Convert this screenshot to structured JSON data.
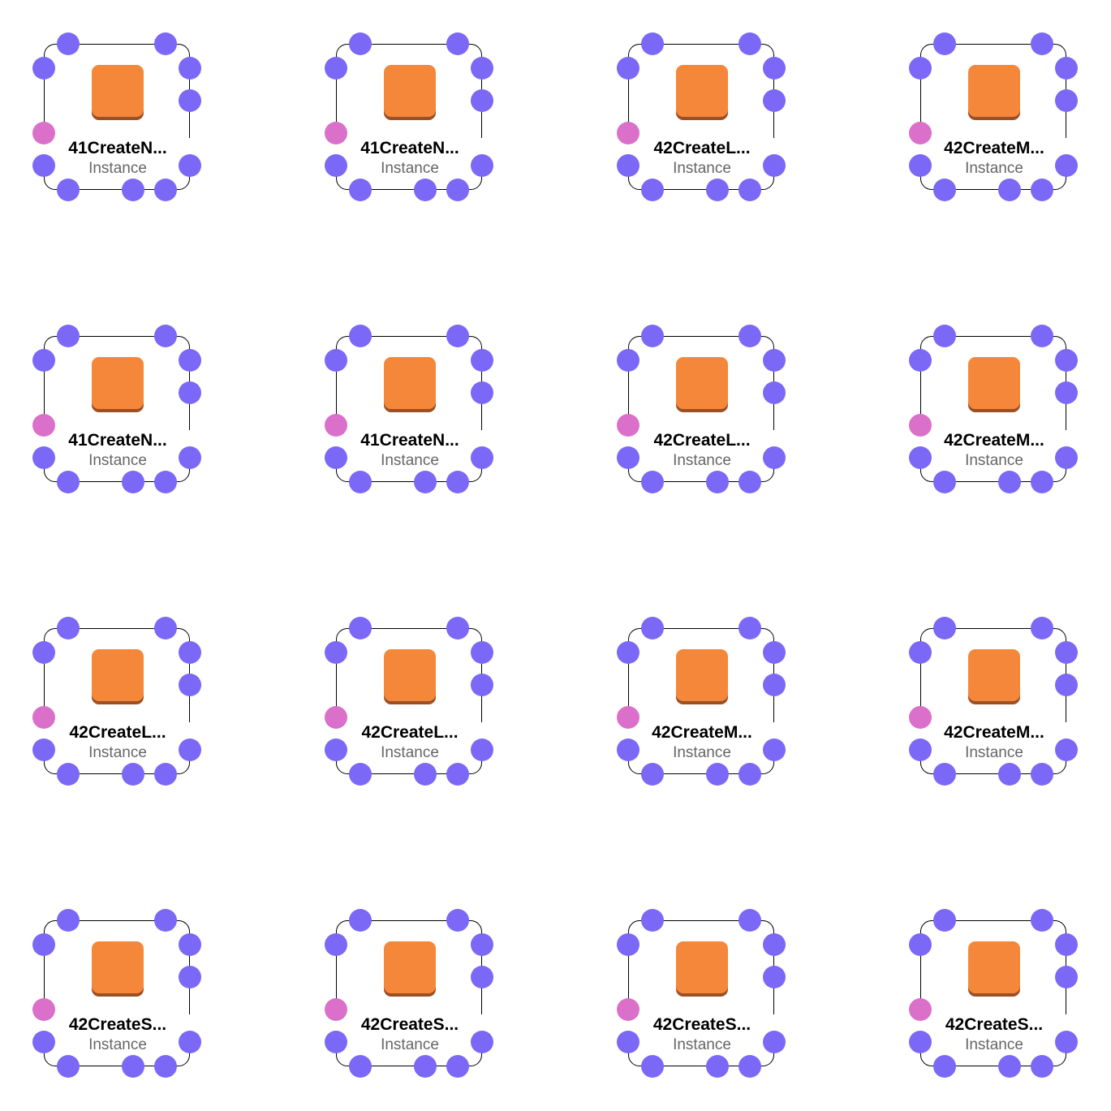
{
  "colors": {
    "port": "#7b68f7",
    "port_special": "#da70c9",
    "icon_face": "#f5873a",
    "icon_base": "#9b4f24",
    "frame_border": "#000000",
    "name_text": "#000000",
    "type_text": "#666666"
  },
  "icon_name": "ec2-instance-icon",
  "nodes": [
    {
      "name": "41CreateN...",
      "type": "Instance"
    },
    {
      "name": "41CreateN...",
      "type": "Instance"
    },
    {
      "name": "42CreateL...",
      "type": "Instance"
    },
    {
      "name": "42CreateM...",
      "type": "Instance"
    },
    {
      "name": "41CreateN...",
      "type": "Instance"
    },
    {
      "name": "41CreateN...",
      "type": "Instance"
    },
    {
      "name": "42CreateL...",
      "type": "Instance"
    },
    {
      "name": "42CreateM...",
      "type": "Instance"
    },
    {
      "name": "42CreateL...",
      "type": "Instance"
    },
    {
      "name": "42CreateL...",
      "type": "Instance"
    },
    {
      "name": "42CreateM...",
      "type": "Instance"
    },
    {
      "name": "42CreateM...",
      "type": "Instance"
    },
    {
      "name": "42CreateS...",
      "type": "Instance"
    },
    {
      "name": "42CreateS...",
      "type": "Instance"
    },
    {
      "name": "42CreateS...",
      "type": "Instance"
    },
    {
      "name": "42CreateS...",
      "type": "Instance"
    }
  ]
}
